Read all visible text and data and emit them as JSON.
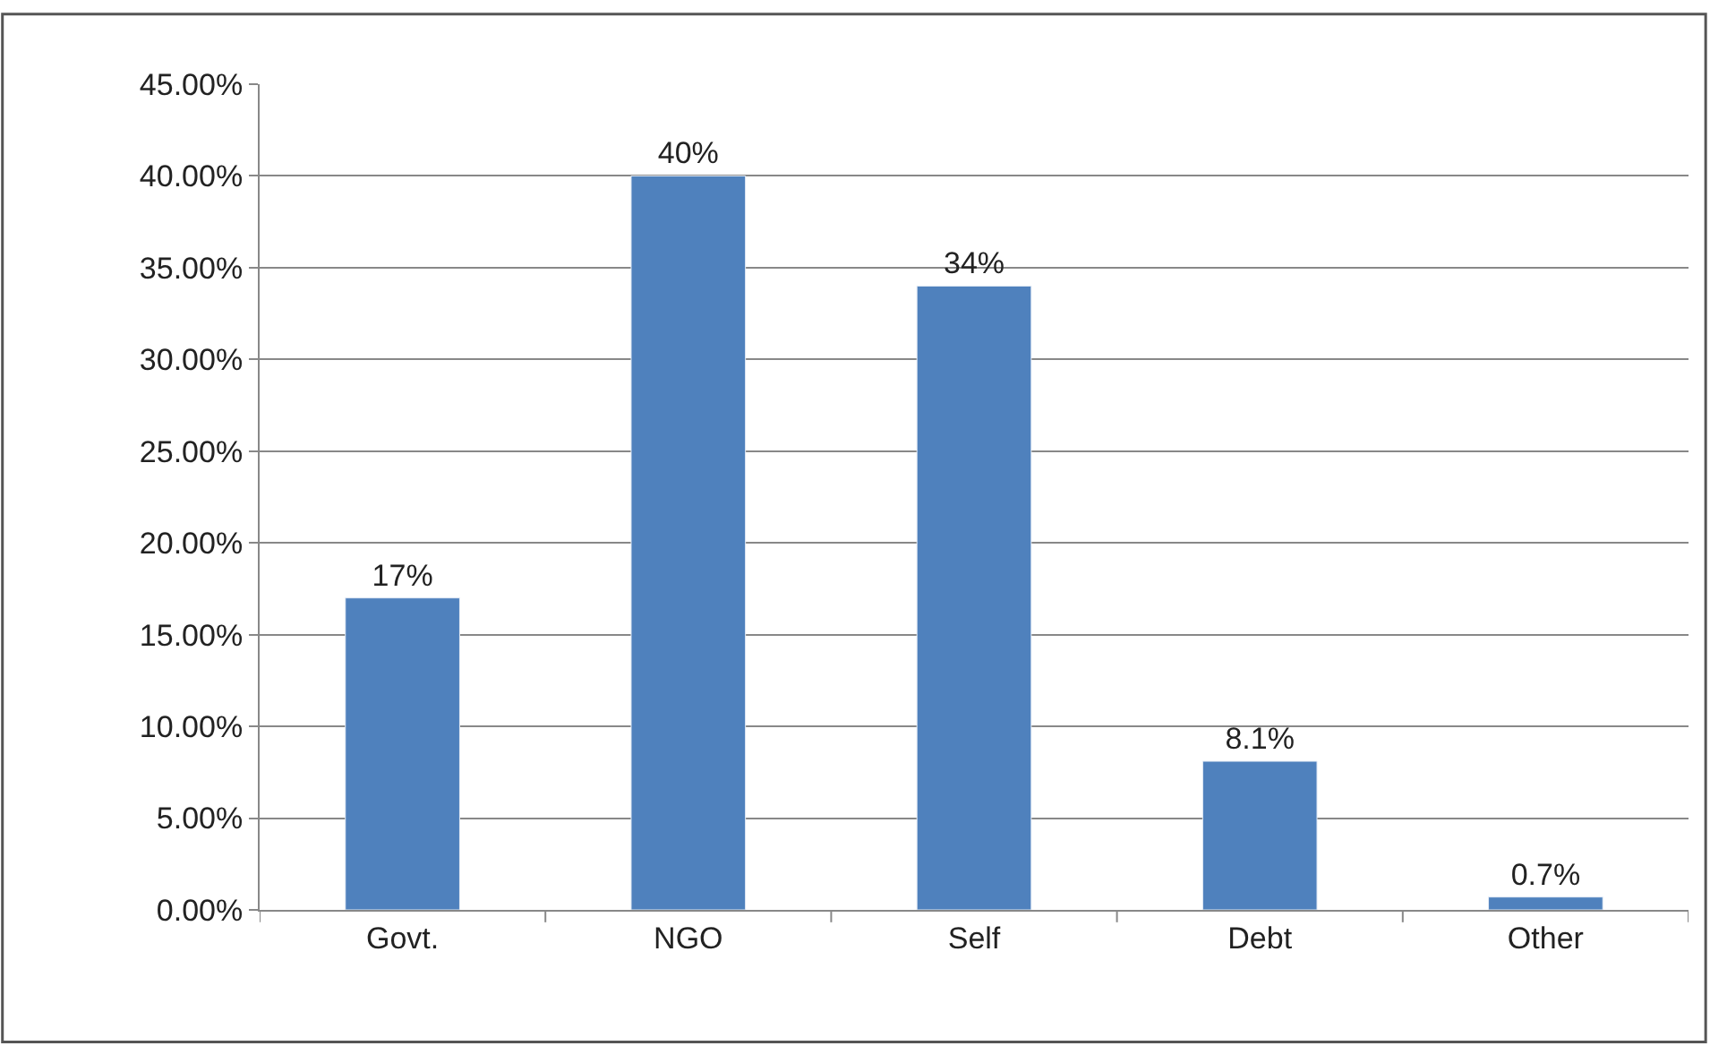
{
  "chart_data": {
    "type": "bar",
    "categories": [
      "Govt.",
      "NGO",
      "Self",
      "Debt",
      "Other"
    ],
    "values": [
      17,
      40,
      34,
      8.1,
      0.7
    ],
    "value_labels": [
      "17%",
      "40%",
      "34%",
      "8.1%",
      "0.7%"
    ],
    "color": "#4f81bd",
    "ylim": [
      0,
      45
    ],
    "yticks": [
      {
        "value": 0,
        "label": "0.00%"
      },
      {
        "value": 5,
        "label": "5.00%"
      },
      {
        "value": 10,
        "label": "10.00%"
      },
      {
        "value": 15,
        "label": "15.00%"
      },
      {
        "value": 20,
        "label": "20.00%"
      },
      {
        "value": 25,
        "label": "25.00%"
      },
      {
        "value": 30,
        "label": "30.00%"
      },
      {
        "value": 35,
        "label": "35.00%"
      },
      {
        "value": 40,
        "label": "40.00%"
      },
      {
        "value": 45,
        "label": "45.00%"
      }
    ],
    "grid": "y"
  }
}
